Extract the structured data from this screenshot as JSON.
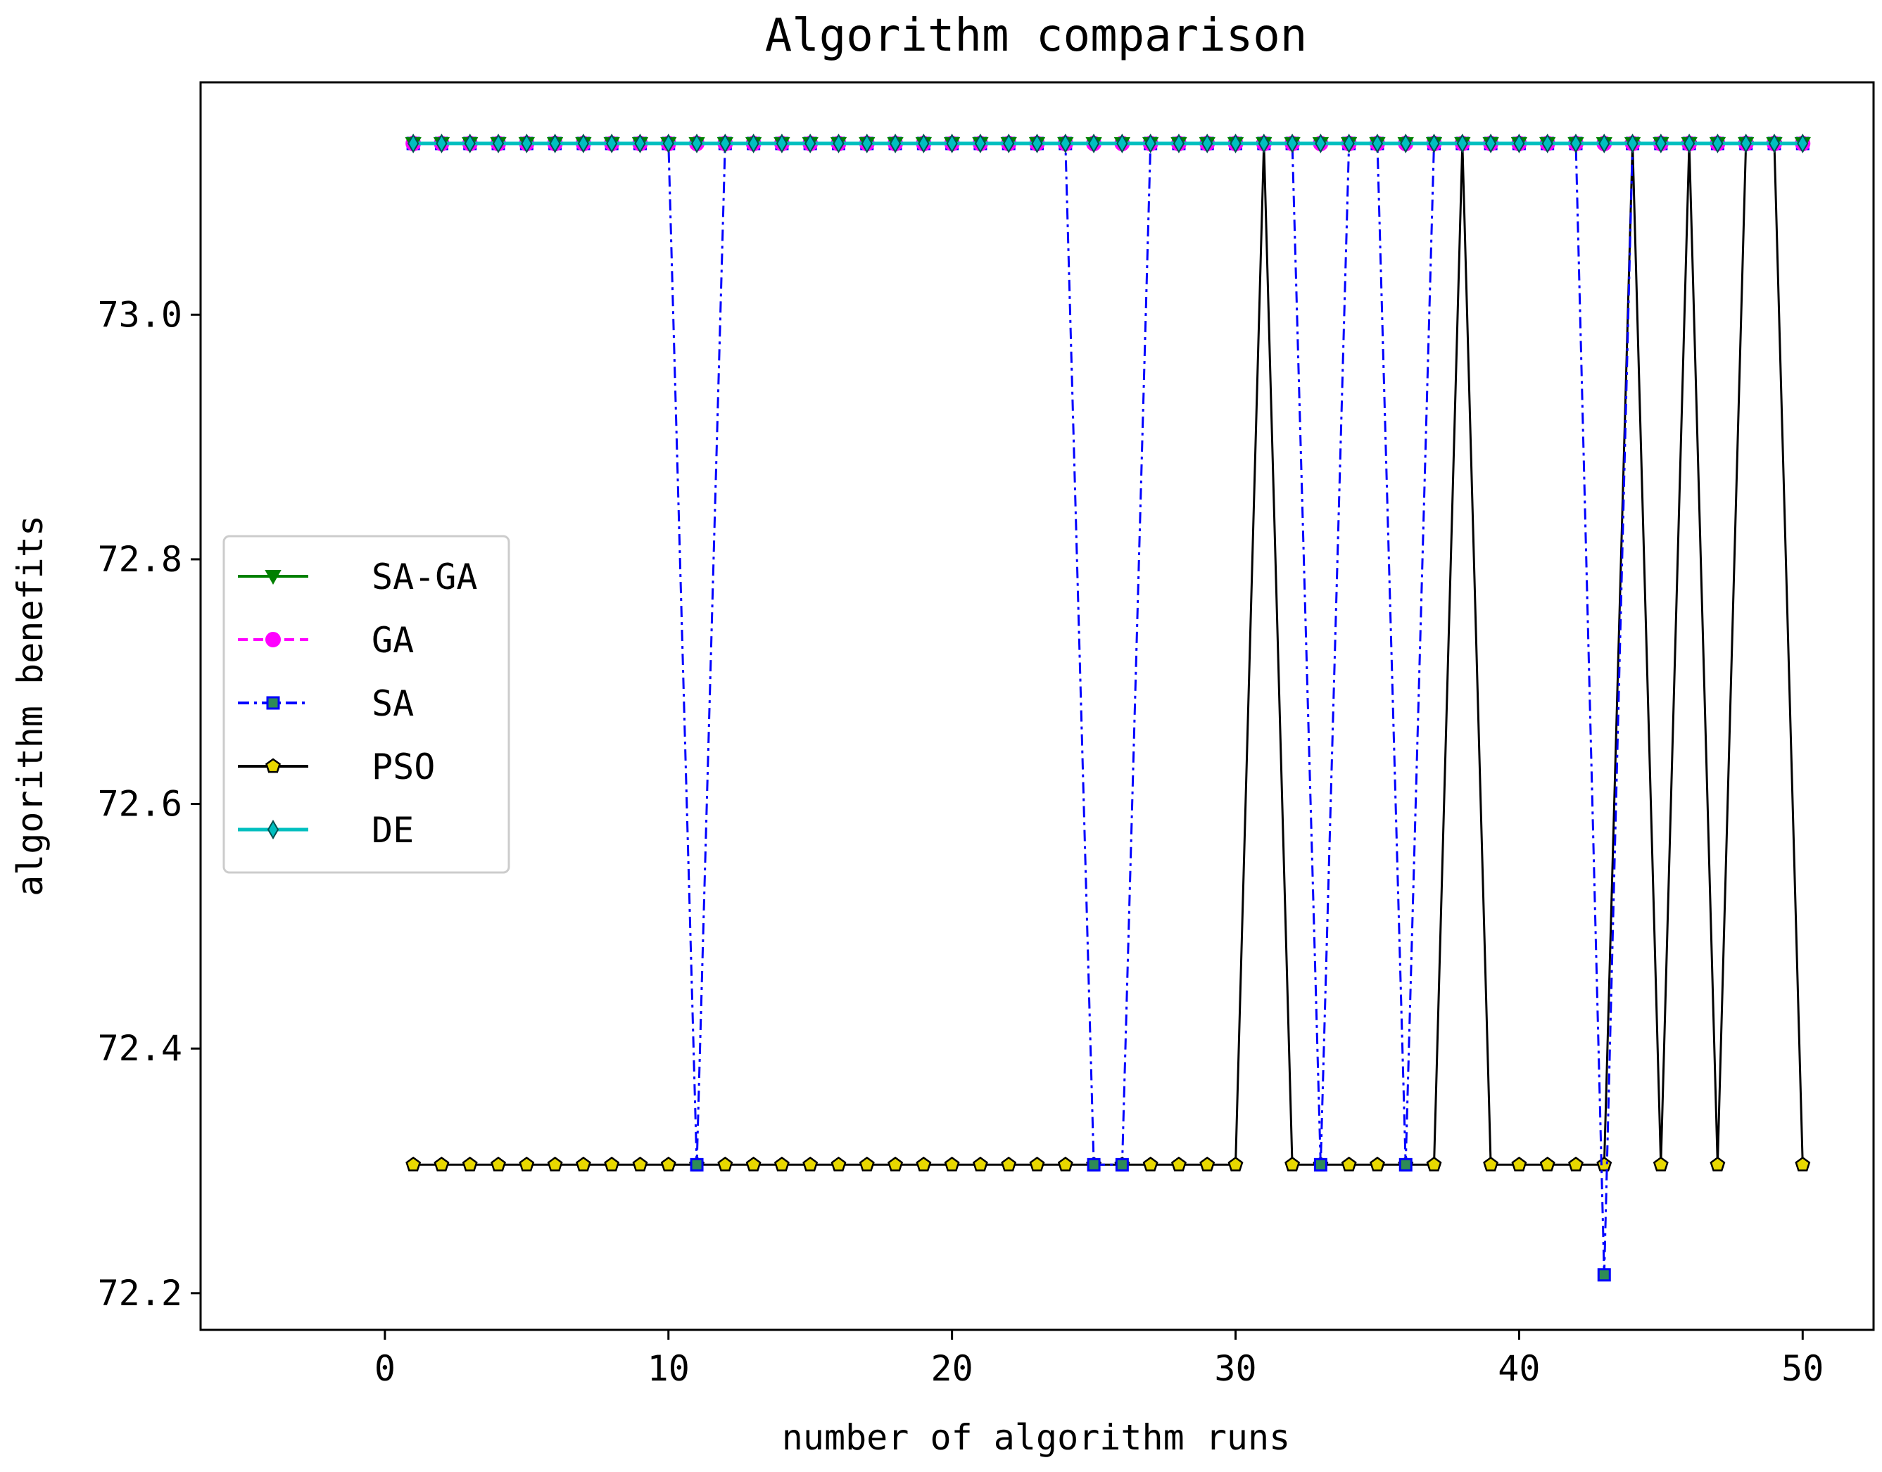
{
  "chart_data": {
    "type": "line",
    "title": "Algorithm comparison",
    "xlabel": "number of algorithm runs",
    "ylabel": "algorithm benefits",
    "xlim": [
      -6.5,
      52.5
    ],
    "ylim": [
      72.17,
      73.19
    ],
    "xticks": [
      0,
      10,
      20,
      30,
      40,
      50
    ],
    "xtick_labels": [
      "0",
      "10",
      "20",
      "30",
      "40",
      "50"
    ],
    "yticks": [
      72.2,
      72.4,
      72.6,
      72.8,
      73.0
    ],
    "ytick_labels": [
      "72.2",
      "72.4",
      "72.6",
      "72.8",
      "73.0"
    ],
    "grid": false,
    "legend_position": "center-left",
    "high": 73.14,
    "low": 72.305,
    "sa_min": 72.215,
    "x": [
      1,
      2,
      3,
      4,
      5,
      6,
      7,
      8,
      9,
      10,
      11,
      12,
      13,
      14,
      15,
      16,
      17,
      18,
      19,
      20,
      21,
      22,
      23,
      24,
      25,
      26,
      27,
      28,
      29,
      30,
      31,
      32,
      33,
      34,
      35,
      36,
      37,
      38,
      39,
      40,
      41,
      42,
      43,
      44,
      45,
      46,
      47,
      48,
      49,
      50
    ],
    "series": [
      {
        "name": "SA-GA",
        "color": "#008000",
        "dash": "",
        "marker": "triangle-down-icon",
        "values": [
          73.14,
          73.14,
          73.14,
          73.14,
          73.14,
          73.14,
          73.14,
          73.14,
          73.14,
          73.14,
          73.14,
          73.14,
          73.14,
          73.14,
          73.14,
          73.14,
          73.14,
          73.14,
          73.14,
          73.14,
          73.14,
          73.14,
          73.14,
          73.14,
          73.14,
          73.14,
          73.14,
          73.14,
          73.14,
          73.14,
          73.14,
          73.14,
          73.14,
          73.14,
          73.14,
          73.14,
          73.14,
          73.14,
          73.14,
          73.14,
          73.14,
          73.14,
          73.14,
          73.14,
          73.14,
          73.14,
          73.14,
          73.14,
          73.14,
          73.14
        ]
      },
      {
        "name": "GA",
        "color": "#ff00ff",
        "dash": "14,8",
        "marker": "circle-icon",
        "values": [
          73.14,
          73.14,
          73.14,
          73.14,
          73.14,
          73.14,
          73.14,
          73.14,
          73.14,
          73.14,
          73.14,
          73.14,
          73.14,
          73.14,
          73.14,
          73.14,
          73.14,
          73.14,
          73.14,
          73.14,
          73.14,
          73.14,
          73.14,
          73.14,
          73.14,
          73.14,
          73.14,
          73.14,
          73.14,
          73.14,
          73.14,
          73.14,
          73.14,
          73.14,
          73.14,
          73.14,
          73.14,
          73.14,
          73.14,
          73.14,
          73.14,
          73.14,
          73.14,
          73.14,
          73.14,
          73.14,
          73.14,
          73.14,
          73.14,
          73.14
        ]
      },
      {
        "name": "SA",
        "color": "#0000ff",
        "dash": "16,7,4,7",
        "marker": "square-icon",
        "values": [
          73.14,
          73.14,
          73.14,
          73.14,
          73.14,
          73.14,
          73.14,
          73.14,
          73.14,
          73.14,
          72.305,
          73.14,
          73.14,
          73.14,
          73.14,
          73.14,
          73.14,
          73.14,
          73.14,
          73.14,
          73.14,
          73.14,
          73.14,
          73.14,
          72.305,
          72.305,
          73.14,
          73.14,
          73.14,
          73.14,
          73.14,
          73.14,
          72.305,
          73.14,
          73.14,
          72.305,
          73.14,
          73.14,
          73.14,
          73.14,
          73.14,
          73.14,
          72.215,
          73.14,
          73.14,
          73.14,
          73.14,
          73.14,
          73.14,
          73.14
        ]
      },
      {
        "name": "PSO",
        "color": "#000000",
        "dash": "",
        "marker": "pentagon-icon",
        "values": [
          72.305,
          72.305,
          72.305,
          72.305,
          72.305,
          72.305,
          72.305,
          72.305,
          72.305,
          72.305,
          72.305,
          72.305,
          72.305,
          72.305,
          72.305,
          72.305,
          72.305,
          72.305,
          72.305,
          72.305,
          72.305,
          72.305,
          72.305,
          72.305,
          72.305,
          72.305,
          72.305,
          72.305,
          72.305,
          72.305,
          73.14,
          72.305,
          72.305,
          72.305,
          72.305,
          72.305,
          72.305,
          73.14,
          72.305,
          72.305,
          72.305,
          72.305,
          72.305,
          73.14,
          72.305,
          73.14,
          72.305,
          73.14,
          73.14,
          72.305
        ]
      },
      {
        "name": "DE",
        "color": "#00bfbf",
        "dash": "",
        "marker": "thin-diamond-icon",
        "values": [
          73.14,
          73.14,
          73.14,
          73.14,
          73.14,
          73.14,
          73.14,
          73.14,
          73.14,
          73.14,
          73.14,
          73.14,
          73.14,
          73.14,
          73.14,
          73.14,
          73.14,
          73.14,
          73.14,
          73.14,
          73.14,
          73.14,
          73.14,
          73.14,
          73.14,
          73.14,
          73.14,
          73.14,
          73.14,
          73.14,
          73.14,
          73.14,
          73.14,
          73.14,
          73.14,
          73.14,
          73.14,
          73.14,
          73.14,
          73.14,
          73.14,
          73.14,
          73.14,
          73.14,
          73.14,
          73.14,
          73.14,
          73.14,
          73.14,
          73.14
        ]
      }
    ]
  }
}
